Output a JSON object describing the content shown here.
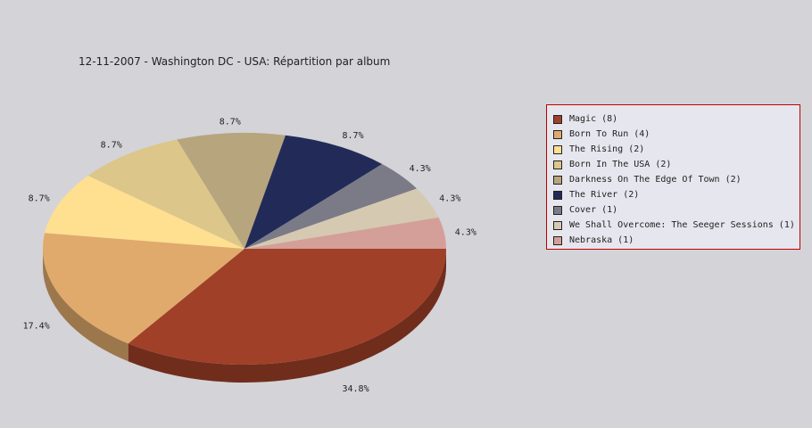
{
  "chart_data": {
    "type": "pie",
    "title": "12-11-2007 - Washington DC - USA:  Répartition par album",
    "legend_position": "right",
    "slices": [
      {
        "label": "Magic (8)",
        "value": 8,
        "percent": "34.8%",
        "color": "#a04028"
      },
      {
        "label": "Born To Run (4)",
        "value": 4,
        "percent": "17.4%",
        "color": "#e0aa6c"
      },
      {
        "label": "The Rising (2)",
        "value": 2,
        "percent": "8.7%",
        "color": "#ffdf90"
      },
      {
        "label": "Born In The USA (2)",
        "value": 2,
        "percent": "8.7%",
        "color": "#dcc689"
      },
      {
        "label": "Darkness On The Edge Of Town (2)",
        "value": 2,
        "percent": "8.7%",
        "color": "#b7a57d"
      },
      {
        "label": "The River (2)",
        "value": 2,
        "percent": "8.7%",
        "color": "#222b58"
      },
      {
        "label": "Cover (1)",
        "value": 1,
        "percent": "4.3%",
        "color": "#7b7b87"
      },
      {
        "label": "We Shall Overcome: The Seeger Sessions (1)",
        "value": 1,
        "percent": "4.3%",
        "color": "#d6c9b1"
      },
      {
        "label": "Nebraska (1)",
        "value": 1,
        "percent": "4.3%",
        "color": "#d49f99"
      }
    ]
  }
}
